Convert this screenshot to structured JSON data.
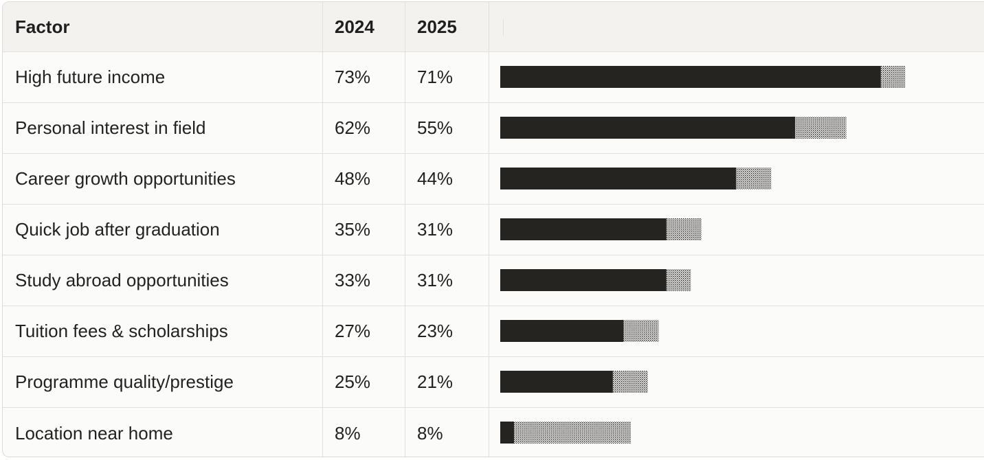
{
  "table": {
    "headers": {
      "factor": "Factor",
      "year1": "2024",
      "year2": "2025",
      "chart": ""
    }
  },
  "chart_data": {
    "type": "bar",
    "orientation": "horizontal",
    "categories": [
      "High future income",
      "Personal interest in field",
      "Career growth opportunities",
      "Quick job after graduation",
      "Study abroad opportunities",
      "Tuition fees & scholarships",
      "Programme quality/prestige",
      "Location near home"
    ],
    "series": [
      {
        "name": "2024",
        "values": [
          73,
          62,
          48,
          35,
          33,
          27,
          25,
          8
        ],
        "labels": [
          "73%",
          "62%",
          "48%",
          "35%",
          "33%",
          "27%",
          "25%",
          "8%"
        ],
        "style": "dotted",
        "color": "#2a2724"
      },
      {
        "name": "2025",
        "values": [
          71,
          55,
          44,
          31,
          31,
          23,
          21,
          8
        ],
        "labels": [
          "71%",
          "55%",
          "44%",
          "31%",
          "31%",
          "23%",
          "21%",
          "8%"
        ],
        "style": "solid",
        "color": "#252420"
      }
    ],
    "xlim": [
      0,
      100
    ],
    "grid": false,
    "legend": "none"
  }
}
